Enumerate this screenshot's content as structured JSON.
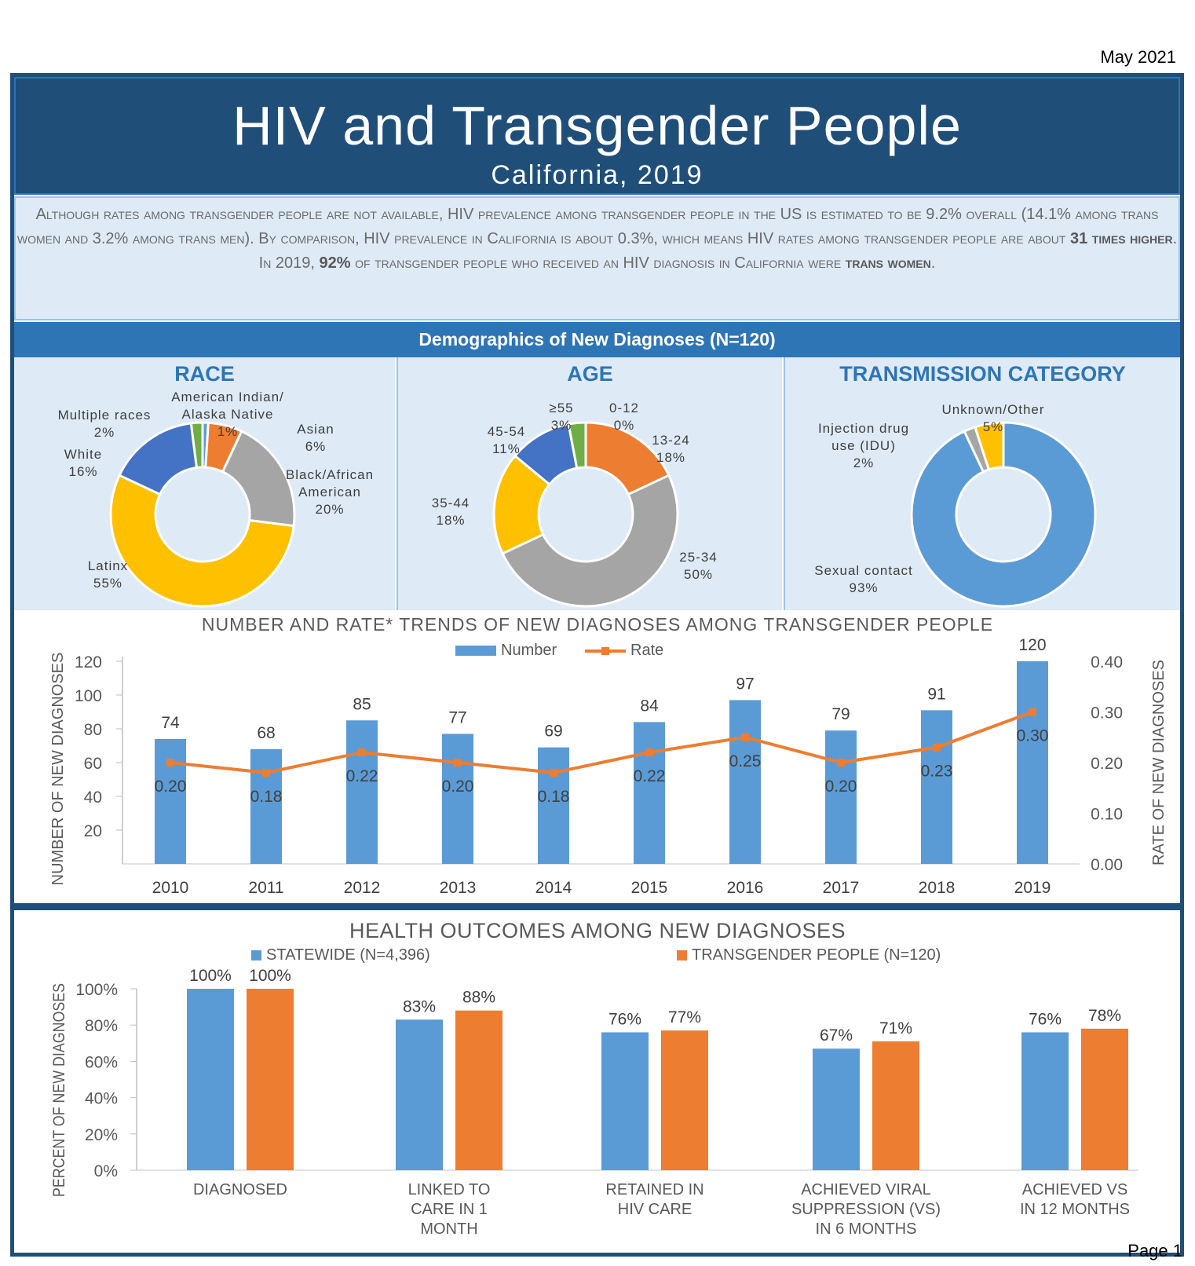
{
  "date": "May 2021",
  "header": {
    "title": "HIV and Transgender People",
    "subtitle": "California, 2019"
  },
  "intro": {
    "p1": "Although rates among transgender people are not available, HIV prevalence among transgender people in the US is estimated to be 9.2% overall (14.1% among trans women and 3.2% among trans men). By comparison, HIV prevalence in California is about 0.3%, which means HIV rates among transgender people are about ",
    "b1": "31 times higher",
    "p2": ". In 2019, ",
    "b2": "92%",
    "p3": " of transgender people who received an HIV diagnosis in California were ",
    "b3": "trans women",
    "p4": "."
  },
  "demographics": {
    "title": "Demographics  of New Diagnoses (N=120)"
  },
  "chart_data": [
    {
      "type": "pie",
      "title": "RACE",
      "donut": true,
      "slices": [
        {
          "label": "American Indian/ Alaska Native",
          "value": 1,
          "display": "1%",
          "color": "#5B9BD5"
        },
        {
          "label": "Asian",
          "value": 6,
          "display": "6%",
          "color": "#ED7D31"
        },
        {
          "label": "Black/African American",
          "value": 20,
          "display": "20%",
          "color": "#A5A5A5"
        },
        {
          "label": "Latinx",
          "value": 55,
          "display": "55%",
          "color": "#FFC000"
        },
        {
          "label": "White",
          "value": 16,
          "display": "16%",
          "color": "#4472C4"
        },
        {
          "label": "Multiple races",
          "value": 2,
          "display": "2%",
          "color": "#70AD47"
        }
      ]
    },
    {
      "type": "pie",
      "title": "AGE",
      "donut": true,
      "slices": [
        {
          "label": "0-12",
          "value": 0,
          "display": "0%",
          "color": "#5B9BD5"
        },
        {
          "label": "13-24",
          "value": 18,
          "display": "18%",
          "color": "#ED7D31"
        },
        {
          "label": "25-34",
          "value": 50,
          "display": "50%",
          "color": "#A5A5A5"
        },
        {
          "label": "35-44",
          "value": 18,
          "display": "18%",
          "color": "#FFC000"
        },
        {
          "label": "45-54",
          "value": 11,
          "display": "11%",
          "color": "#4472C4"
        },
        {
          "label": "≥55",
          "value": 3,
          "display": "3%",
          "color": "#70AD47"
        }
      ]
    },
    {
      "type": "pie",
      "title": "TRANSMISSION CATEGORY",
      "donut": true,
      "slices": [
        {
          "label": "Sexual contact",
          "value": 93,
          "display": "93%",
          "color": "#5B9BD5"
        },
        {
          "label": "Injection drug use (IDU)",
          "value": 2,
          "display": "2%",
          "color": "#A5A5A5"
        },
        {
          "label": "Unknown/Other",
          "value": 5,
          "display": "5%",
          "color": "#FFC000"
        }
      ]
    },
    {
      "type": "bar",
      "title": "NUMBER AND RATE* TRENDS OF NEW DIAGNOSES AMONG TRANSGENDER PEOPLE",
      "categories": [
        "2010",
        "2011",
        "2012",
        "2013",
        "2014",
        "2015",
        "2016",
        "2017",
        "2018",
        "2019"
      ],
      "series": [
        {
          "name": "Number",
          "type": "bar",
          "axis": "left",
          "color": "#5B9BD5",
          "values": [
            74,
            68,
            85,
            77,
            69,
            84,
            97,
            79,
            91,
            120
          ]
        },
        {
          "name": "Rate",
          "type": "line",
          "axis": "right",
          "color": "#ED7D31",
          "values": [
            0.2,
            0.18,
            0.22,
            0.2,
            0.18,
            0.22,
            0.25,
            0.2,
            0.23,
            0.3
          ],
          "labels": [
            "0.20",
            "0.18",
            "0.22",
            "0.20",
            "0.18",
            "0.22",
            "0.25",
            "0.20",
            "0.23",
            "0.30"
          ]
        }
      ],
      "ylabel": "NUMBER OF NEW DIAGNOSES",
      "ylim": [
        0,
        120
      ],
      "yticks": [
        "20",
        "40",
        "60",
        "80",
        "100",
        "120"
      ],
      "y2label": "RATE OF NEW DIAGNOSES",
      "y2lim": [
        0,
        0.4
      ],
      "y2ticks": [
        "0.00",
        "0.10",
        "0.20",
        "0.30",
        "0.40"
      ],
      "legend": "top"
    },
    {
      "type": "bar",
      "title": "HEALTH OUTCOMES AMONG NEW DIAGNOSES",
      "categories": [
        "DIAGNOSED",
        "LINKED TO CARE IN 1 MONTH",
        "RETAINED IN HIV CARE",
        "ACHIEVED VIRAL SUPPRESSION (VS) IN 6 MONTHS",
        "ACHIEVED VS IN 12 MONTHS"
      ],
      "category_lines": [
        [
          "DIAGNOSED"
        ],
        [
          "LINKED TO",
          "CARE IN 1",
          "MONTH"
        ],
        [
          "RETAINED IN",
          "HIV CARE"
        ],
        [
          "ACHIEVED VIRAL",
          "SUPPRESSION (VS)",
          "IN 6 MONTHS"
        ],
        [
          "ACHIEVED VS",
          "IN 12 MONTHS"
        ]
      ],
      "series": [
        {
          "name": "STATEWIDE (N=4,396)",
          "color": "#5B9BD5",
          "values": [
            100,
            83,
            76,
            67,
            76
          ]
        },
        {
          "name": "TRANSGENDER PEOPLE (N=120)",
          "color": "#ED7D31",
          "values": [
            100,
            88,
            77,
            71,
            78
          ]
        }
      ],
      "ylabel": "PERCENT OF NEW DIAGNOSES",
      "ylim": [
        0,
        100
      ],
      "yticks": [
        "0%",
        "20%",
        "40%",
        "60%",
        "80%",
        "100%"
      ],
      "legend": "top"
    }
  ],
  "page": "Page 1"
}
